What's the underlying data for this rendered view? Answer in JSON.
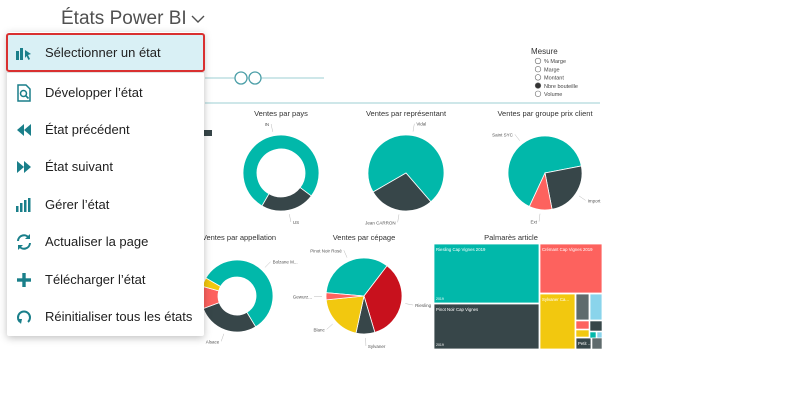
{
  "header": {
    "title": "États Power BI"
  },
  "menu": {
    "items": [
      {
        "label": "Sélectionner un état",
        "icon": "select-report-icon"
      },
      {
        "label": "Développer l’état",
        "icon": "expand-report-icon"
      },
      {
        "label": "État précédent",
        "icon": "previous-report-icon"
      },
      {
        "label": "État suivant",
        "icon": "next-report-icon"
      },
      {
        "label": "Gérer l’état",
        "icon": "manage-report-icon"
      },
      {
        "label": "Actualiser la page",
        "icon": "refresh-icon"
      },
      {
        "label": "Télécharger l’état",
        "icon": "upload-report-icon"
      },
      {
        "label": "Réinitialiser tous les états",
        "icon": "reset-icon"
      }
    ]
  },
  "colors": {
    "teal": "#01b8aa",
    "dark": "#374649",
    "red": "#fd625e",
    "yellow": "#f2c80f",
    "grey": "#5f6b6d",
    "blue": "#8ad4eb",
    "crimson": "#c8111d",
    "accent": "#d93030"
  },
  "filter": {
    "title": "Mesure",
    "options": [
      {
        "label": "% Marge",
        "selected": false
      },
      {
        "label": "Marge",
        "selected": false
      },
      {
        "label": "Montant",
        "selected": false
      },
      {
        "label": "Nbre bouteille",
        "selected": true
      },
      {
        "label": "Volume",
        "selected": false
      }
    ]
  },
  "chart_data": [
    {
      "type": "pie",
      "title": "Ventes par pays",
      "slices": [
        {
          "label": "IN",
          "value": 77
        },
        {
          "label": "US",
          "value": 23
        }
      ]
    },
    {
      "type": "pie",
      "title": "Ventes par représentant",
      "slices": [
        {
          "label": "Vidal",
          "value": 72
        },
        {
          "label": "Jean CARRON",
          "value": 28
        }
      ]
    },
    {
      "type": "pie",
      "title": "Ventes par groupe prix client",
      "slices": [
        {
          "label": "Saint SYC",
          "value": 65
        },
        {
          "label": "Import",
          "value": 25
        },
        {
          "label": "Ext",
          "value": 10
        }
      ]
    },
    {
      "type": "pie",
      "title": "Ventes par appellation",
      "slices": [
        {
          "label": "Bolzane M...",
          "value": 58
        },
        {
          "label": "Alsace",
          "value": 28
        },
        {
          "label": "Bellea...",
          "value": 10
        },
        {
          "label": "",
          "value": 4
        }
      ]
    },
    {
      "type": "pie",
      "title": "Ventes par cépage",
      "slices": [
        {
          "label": "Pinot Noir Rosé",
          "value": 34
        },
        {
          "label": "Riesling",
          "value": 35
        },
        {
          "label": "Sylvaner",
          "value": 8
        },
        {
          "label": "Blanc",
          "value": 20
        },
        {
          "label": "Gewurz...",
          "value": 3
        }
      ]
    },
    {
      "type": "treemap",
      "title": "Palmarès article",
      "items": [
        {
          "label": "Riesling Cap Vignes 2019",
          "sub": "2019",
          "color": "teal",
          "value": 30
        },
        {
          "label": "Pinot Noir Cap Vignes",
          "sub": "2019",
          "color": "dark",
          "value": 23
        },
        {
          "label": "Crémant Cap Vignes 2019",
          "sub": "",
          "color": "red",
          "value": 15
        },
        {
          "label": "Sylvaner Ca...",
          "sub": "",
          "color": "yellow",
          "value": 8
        },
        {
          "label": "",
          "sub": "",
          "color": "grey",
          "value": 4
        },
        {
          "label": "",
          "sub": "",
          "color": "blue",
          "value": 3
        },
        {
          "label": "Petit ...",
          "sub": "",
          "color": "dark",
          "value": 2
        }
      ]
    }
  ]
}
